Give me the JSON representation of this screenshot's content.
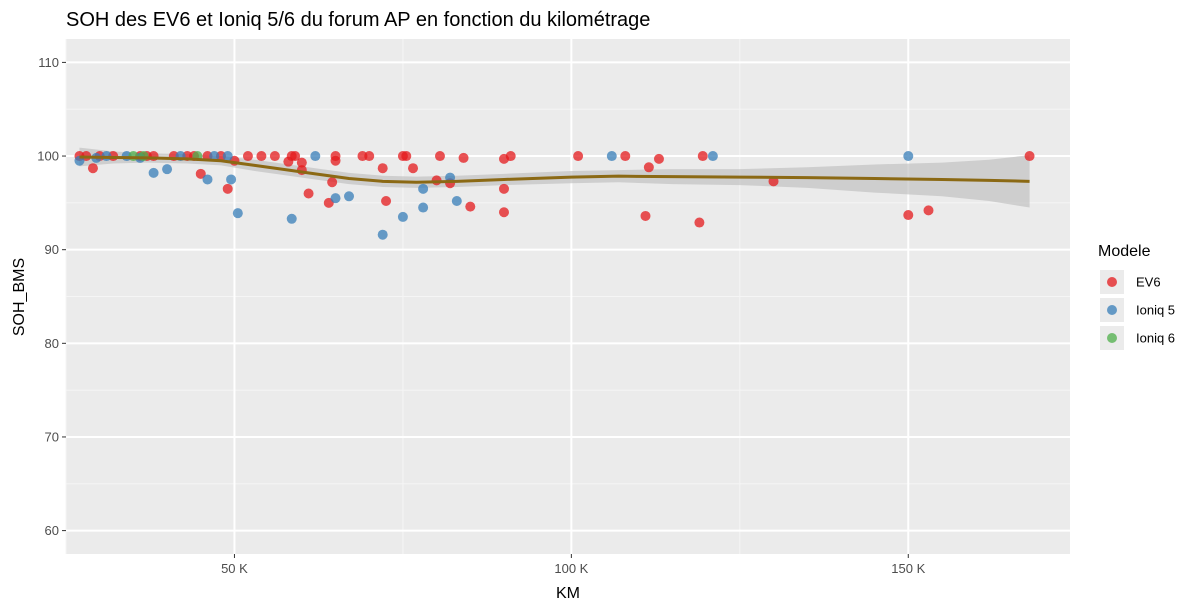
{
  "chart_data": {
    "type": "scatter",
    "title": "SOH des EV6 et Ioniq 5/6 du forum AP en fonction du kilométrage",
    "xlabel": "KM",
    "ylabel": "SOH_BMS",
    "xlim": [
      25000,
      174000
    ],
    "ylim": [
      57.5,
      112.5
    ],
    "x_ticks": [
      50000,
      100000,
      150000
    ],
    "x_tick_labels": [
      "50 K",
      "100 K",
      "150 K"
    ],
    "y_ticks": [
      60,
      70,
      80,
      90,
      100,
      110
    ],
    "y_tick_labels": [
      "60",
      "70",
      "80",
      "90",
      "100",
      "110"
    ],
    "grid": true,
    "legend": {
      "title": "Modele",
      "position": "right"
    },
    "series": [
      {
        "name": "EV6",
        "color": "#e41a1c",
        "points": [
          [
            27000,
            100
          ],
          [
            28000,
            100
          ],
          [
            29000,
            98.7
          ],
          [
            30000,
            100
          ],
          [
            32000,
            100
          ],
          [
            36000,
            100
          ],
          [
            37000,
            100
          ],
          [
            38000,
            100
          ],
          [
            41000,
            100
          ],
          [
            43000,
            100
          ],
          [
            44000,
            100
          ],
          [
            45000,
            98.1
          ],
          [
            46000,
            100
          ],
          [
            48000,
            100
          ],
          [
            49000,
            96.5
          ],
          [
            50000,
            99.5
          ],
          [
            52000,
            100
          ],
          [
            54000,
            100
          ],
          [
            56000,
            100
          ],
          [
            58000,
            99.4
          ],
          [
            58500,
            100
          ],
          [
            59000,
            100
          ],
          [
            60000,
            99.3
          ],
          [
            60000,
            98.5
          ],
          [
            61000,
            96
          ],
          [
            64000,
            95
          ],
          [
            64500,
            97.2
          ],
          [
            65000,
            99.5
          ],
          [
            65000,
            100
          ],
          [
            69000,
            100
          ],
          [
            70000,
            100
          ],
          [
            72000,
            98.7
          ],
          [
            72500,
            95.2
          ],
          [
            75000,
            100
          ],
          [
            75500,
            100
          ],
          [
            76500,
            98.7
          ],
          [
            80000,
            97.4
          ],
          [
            80500,
            100
          ],
          [
            82000,
            97.1
          ],
          [
            84000,
            99.8
          ],
          [
            85000,
            94.6
          ],
          [
            90000,
            99.7
          ],
          [
            90000,
            96.5
          ],
          [
            90000,
            94
          ],
          [
            91000,
            100
          ],
          [
            101000,
            100
          ],
          [
            108000,
            100
          ],
          [
            111000,
            93.6
          ],
          [
            111500,
            98.8
          ],
          [
            113000,
            99.7
          ],
          [
            119000,
            92.9
          ],
          [
            119500,
            100
          ],
          [
            130000,
            97.3
          ],
          [
            150000,
            93.7
          ],
          [
            153000,
            94.2
          ],
          [
            168000,
            100
          ]
        ]
      },
      {
        "name": "Ioniq 5",
        "color": "#377eb8",
        "points": [
          [
            27000,
            99.5
          ],
          [
            29500,
            99.8
          ],
          [
            31000,
            100
          ],
          [
            34000,
            100
          ],
          [
            36000,
            99.8
          ],
          [
            38000,
            98.2
          ],
          [
            40000,
            98.6
          ],
          [
            42000,
            100
          ],
          [
            46000,
            97.5
          ],
          [
            47000,
            100
          ],
          [
            49000,
            100
          ],
          [
            49500,
            97.5
          ],
          [
            50500,
            93.9
          ],
          [
            58500,
            93.3
          ],
          [
            62000,
            100
          ],
          [
            65000,
            95.5
          ],
          [
            67000,
            95.7
          ],
          [
            72000,
            91.6
          ],
          [
            75000,
            93.5
          ],
          [
            78000,
            96.5
          ],
          [
            78000,
            94.5
          ],
          [
            82000,
            97.7
          ],
          [
            83000,
            95.2
          ],
          [
            106000,
            100
          ],
          [
            121000,
            100
          ],
          [
            150000,
            100
          ]
        ]
      },
      {
        "name": "Ioniq 6",
        "color": "#4daf4a",
        "points": [
          [
            35000,
            100
          ],
          [
            36500,
            100
          ],
          [
            44500,
            100
          ]
        ]
      }
    ],
    "smooth": {
      "color": "#8b6914",
      "band_color": "#bfbfbf",
      "points": [
        [
          27000,
          99.9,
          98.9,
          100.9
        ],
        [
          32000,
          99.85,
          99.2,
          100.5
        ],
        [
          37000,
          99.8,
          99.3,
          100.3
        ],
        [
          43000,
          99.7,
          99.2,
          100.2
        ],
        [
          48000,
          99.5,
          99.0,
          100.0
        ],
        [
          53000,
          99.0,
          98.4,
          99.6
        ],
        [
          57000,
          98.6,
          98.0,
          99.2
        ],
        [
          62000,
          98.1,
          97.5,
          98.7
        ],
        [
          67000,
          97.6,
          97.0,
          98.2
        ],
        [
          72000,
          97.3,
          96.7,
          97.9
        ],
        [
          77000,
          97.2,
          96.6,
          97.8
        ],
        [
          83000,
          97.3,
          96.7,
          97.9
        ],
        [
          90000,
          97.5,
          96.9,
          98.1
        ],
        [
          100000,
          97.75,
          97.1,
          98.4
        ],
        [
          107000,
          97.85,
          97.2,
          98.5
        ],
        [
          115000,
          97.8,
          97.0,
          98.6
        ],
        [
          125000,
          97.75,
          96.9,
          98.6
        ],
        [
          135000,
          97.7,
          96.6,
          98.8
        ],
        [
          145000,
          97.6,
          96.1,
          99.1
        ],
        [
          155000,
          97.5,
          95.7,
          99.3
        ],
        [
          162000,
          97.4,
          95.2,
          99.6
        ],
        [
          168000,
          97.3,
          94.5,
          100.1
        ]
      ]
    }
  }
}
